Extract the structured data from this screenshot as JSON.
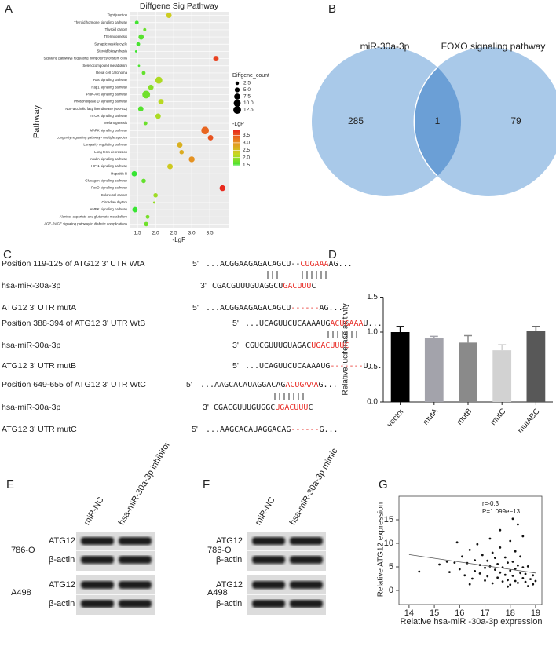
{
  "chart_data": [
    {
      "type": "bubble",
      "panel": "A",
      "title": "Diffgene Sig Pathway",
      "x_label": "-LgP",
      "y_label": "Pathway",
      "categories": [
        "Tight junction",
        "Thyroid hormone signaling pathway",
        "Thyroid cancer",
        "Thermogenesis",
        "Synaptic vesicle cycle",
        "Steroid biosynthesis",
        "Signaling pathways regulating pluripotency of stem cells",
        "Selenocompound metabolism",
        "Renal cell carcinoma",
        "Ras signaling pathway",
        "Rap1 signaling pathway",
        "PI3K-Akt signaling pathway",
        "Phospholipase D signaling pathway",
        "Non-alcoholic fatty liver disease (NAFLD)",
        "mTOR signaling pathway",
        "Melanogenesis",
        "MAPK signaling pathway",
        "Longevity regulating pathway - multiple species",
        "Longevity regulating pathway",
        "Long-term depression",
        "Insulin signaling pathway",
        "HIF-1 signaling pathway",
        "Hepatitis B",
        "Glucagon signaling pathway",
        "FoxO signaling pathway",
        "Colorectal cancer",
        "Circadian rhythm",
        "AMPK signaling pathway",
        "Alanine, aspartate and glutamate metabolism",
        "AGE-RAGE signaling pathway in diabetic complications"
      ],
      "values": [
        2.37,
        1.48,
        1.7,
        1.6,
        1.52,
        1.46,
        3.67,
        1.54,
        1.67,
        2.09,
        1.87,
        1.74,
        2.15,
        1.59,
        2.07,
        1.72,
        3.37,
        3.52,
        2.67,
        2.72,
        3.0,
        2.4,
        1.41,
        1.67,
        3.85,
        2.0,
        1.96,
        1.43,
        1.78,
        1.74
      ],
      "sizes": [
        6,
        3,
        2,
        6,
        3,
        1,
        6,
        1,
        3,
        10,
        6,
        12.5,
        6,
        6,
        6,
        3,
        12,
        6,
        6,
        4,
        7,
        6,
        6,
        4,
        7,
        4,
        1,
        6,
        3,
        4
      ],
      "xlim": [
        1.28,
        4.04
      ],
      "xticks": [
        1.5,
        {
          "value": 2,
          "label": "2.0"
        },
        2.5,
        {
          "value": 3,
          "label": "3.0"
        },
        3.5
      ],
      "grid": true,
      "size_legend": {
        "title": "Diffgene_count",
        "ticks": [
          2.5,
          {
            "value": 5,
            "label": "5.0"
          },
          7.5,
          {
            "value": 10,
            "label": "10.0"
          },
          12.5
        ]
      },
      "colorbar": {
        "title": "-LgP",
        "colors": [
          "#33e533",
          "#c8d820",
          "#e88c22",
          "#e8241e"
        ],
        "lim": [
          1.4,
          3.9
        ],
        "ticks": [
          1.5,
          {
            "value": 2,
            "label": "2.0"
          },
          2.5,
          {
            "value": 3,
            "label": "3.0"
          },
          3.5
        ]
      }
    },
    {
      "type": "bar",
      "panel": "D",
      "y_label": "Relative luciferase acitivity",
      "categories": [
        "vector",
        "mutA",
        "mutB",
        "mutC",
        "mutABC"
      ],
      "values": [
        1.0,
        0.91,
        0.85,
        0.74,
        1.02
      ],
      "errors": [
        0.08,
        0.03,
        0.1,
        0.08,
        0.06
      ],
      "colors": [
        "#000000",
        "#a3a3ab",
        "#8a8a8a",
        "#d2d2d2",
        "#585858"
      ],
      "ylim": [
        0,
        1.5
      ],
      "yticks": [
        {
          "value": 0,
          "label": "0.0"
        },
        {
          "value": 0.5,
          "label": "0.5"
        },
        {
          "value": 1,
          "label": "1.0"
        },
        {
          "value": 1.5,
          "label": "1.5"
        }
      ]
    },
    {
      "type": "scatter",
      "panel": "G",
      "x_label": "Relative hsa-miR -30a-3p expression",
      "y_label": "Relative ATG12 expression",
      "annotations": [
        "r=-0.3",
        "P=1.099e−13"
      ],
      "color": "#111111",
      "x": [
        14.4,
        15.2,
        15.5,
        15.6,
        15.8,
        15.9,
        16.0,
        16.1,
        16.2,
        16.3,
        16.4,
        16.5,
        16.6,
        16.6,
        16.7,
        16.8,
        16.8,
        16.9,
        17.0,
        17.0,
        17.1,
        17.1,
        17.2,
        17.2,
        17.3,
        17.3,
        17.4,
        17.4,
        17.5,
        17.5,
        17.6,
        17.6,
        17.7,
        17.7,
        17.8,
        17.8,
        17.9,
        17.9,
        18.0,
        18.0,
        18.0,
        18.1,
        18.1,
        18.2,
        18.2,
        18.2,
        18.3,
        18.3,
        18.4,
        18.4,
        18.5,
        18.5,
        18.6,
        18.6,
        18.7,
        18.8,
        18.9,
        18.9,
        18.1,
        18.3,
        17.6,
        18.5,
        16.4,
        17.9,
        18.7,
        19.0
      ],
      "y": [
        4.0,
        5.5,
        6.1,
        3.9,
        5.9,
        10.2,
        4.5,
        7.2,
        3.2,
        5.8,
        8.6,
        2.5,
        6.4,
        4.1,
        9.8,
        3.6,
        5.4,
        7.5,
        2.1,
        4.8,
        6.3,
        3.0,
        11.0,
        5.1,
        1.5,
        8.0,
        4.4,
        6.9,
        2.7,
        5.6,
        3.8,
        9.1,
        1.9,
        4.9,
        7.0,
        3.3,
        5.9,
        2.2,
        10.5,
        4.2,
        1.2,
        6.1,
        3.1,
        8.3,
        4.6,
        2.0,
        5.3,
        1.6,
        3.7,
        7.2,
        2.6,
        4.9,
        1.8,
        3.5,
        5.1,
        2.4,
        3.2,
        1.3,
        15.2,
        14.0,
        12.8,
        11.5,
        1.3,
        0.8,
        0.9,
        2.0
      ],
      "fit": {
        "x": [
          14,
          19
        ],
        "y": [
          7.6,
          3.7
        ]
      },
      "xlim": [
        13.6,
        19.25
      ],
      "xticks": [
        14,
        15,
        16,
        17,
        18,
        19
      ],
      "ylim": [
        -3,
        20
      ],
      "yticks": [
        0,
        5,
        10,
        15
      ]
    }
  ],
  "venn": {
    "panel": "B",
    "sets": [
      "miR-30a-3p",
      "FOXO signaling pathway"
    ],
    "counts": [
      285,
      1,
      79
    ],
    "colors": [
      "#a9c9e9",
      "#6b9fd6"
    ]
  },
  "alignment": {
    "panel": "C",
    "highlight": "#e8302a",
    "rows": [
      {
        "label": "Position 119-125 of ATG12 3' UTR WtA",
        "prime": "5'",
        "segments": [
          {
            "text": "...ACGGAAGAGACAGCU"
          },
          {
            "text": "--"
          },
          {
            "text": "CUGAAA",
            "highlight": true
          },
          {
            "text": "AG..."
          }
        ]
      },
      {
        "label": "hsa-miR-30a-3p",
        "prime": "3'",
        "segments": [
          {
            "text": "CGACGUUUGUAGGCU"
          },
          {
            "text": "GACUUU",
            "highlight": true
          },
          {
            "text": "C"
          }
        ]
      },
      {
        "label": "ATG12 3' UTR mutA",
        "prime": "5'",
        "segments": [
          {
            "text": "...ACGGAAGAGACAGCU"
          },
          {
            "text": "------",
            "highlight": true
          },
          {
            "text": "AG..."
          }
        ]
      },
      {
        "label": "Position 388-394 of ATG12 3' UTR WtB",
        "prime": "5'",
        "segments": [
          {
            "text": "...UCAGUUCUCAAAAUG"
          },
          {
            "text": "ACUGAAA",
            "highlight": true
          },
          {
            "text": "U..."
          }
        ]
      },
      {
        "label": "hsa-miR-30a-3p",
        "prime": "3'",
        "segments": [
          {
            "text": "CGUCGUUUGUAGAC"
          },
          {
            "text": "UGACUUUC",
            "highlight": true
          }
        ]
      },
      {
        "label": "ATG12 3' UTR mutB",
        "prime": "5'",
        "segments": [
          {
            "text": "...UCAGUUCUCAAAAUG"
          },
          {
            "text": "-------",
            "highlight": true
          },
          {
            "text": "U..."
          }
        ]
      },
      {
        "label": "Position 649-655 of ATG12 3' UTR WtC",
        "prime": "5'",
        "segments": [
          {
            "text": "...AAGCACAUAGGACAG"
          },
          {
            "text": "ACUGAAA",
            "highlight": true
          },
          {
            "text": "G..."
          }
        ]
      },
      {
        "label": "hsa-miR-30a-3p",
        "prime": "3'",
        "segments": [
          {
            "text": "CGACGUUUGUGGC"
          },
          {
            "text": "UGACUUU",
            "highlight": true
          },
          {
            "text": "C"
          }
        ]
      },
      {
        "label": "ATG12 3' UTR mutC",
        "prime": "5'",
        "segments": [
          {
            "text": "...AAGCACAUAGGACAG"
          },
          {
            "text": "------",
            "highlight": true
          },
          {
            "text": "G..."
          }
        ]
      }
    ]
  },
  "blots": [
    {
      "panel": "E",
      "lanes": [
        "miR-NC",
        "hsa-miR-30a-3p inhibitor"
      ],
      "cell_lines": [
        "786-O",
        "A498"
      ],
      "proteins": [
        "ATG12",
        "β-actin"
      ]
    },
    {
      "panel": "F",
      "lanes": [
        "miR-NC",
        "hsa-miR-30a-3p mimic"
      ],
      "cell_lines": [
        "786-O",
        "A498"
      ],
      "proteins": [
        "ATG12",
        "β-actin"
      ]
    }
  ]
}
